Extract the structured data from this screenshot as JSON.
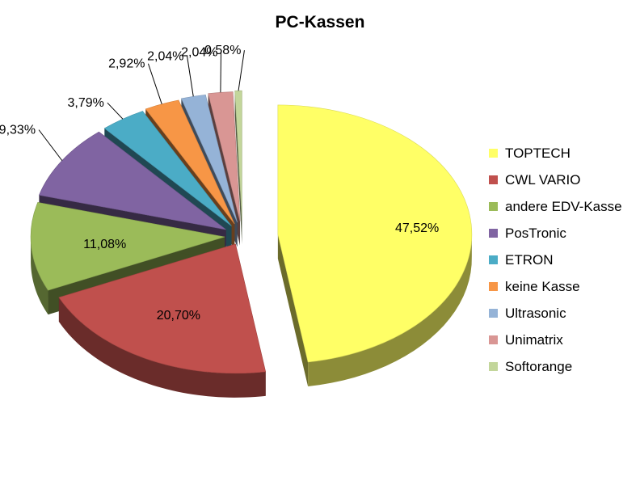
{
  "chart_data": {
    "type": "pie",
    "title": "PC-Kassen",
    "legend_position": "right",
    "label_suffix": "%",
    "slices": [
      {
        "label": "TOPTECH",
        "value": 47.52,
        "display": "47,52%",
        "color": "#ffff66"
      },
      {
        "label": "CWL VARIO",
        "value": 20.7,
        "display": "20,70%",
        "color": "#c0504d"
      },
      {
        "label": "andere EDV-Kasse",
        "value": 11.08,
        "display": "11,08%",
        "color": "#9bbb59"
      },
      {
        "label": "PosTronic",
        "value": 9.33,
        "display": "9,33%",
        "color": "#8064a2"
      },
      {
        "label": "ETRON",
        "value": 3.79,
        "display": "3,79%",
        "color": "#4bacc6"
      },
      {
        "label": "keine Kasse",
        "value": 2.92,
        "display": "2,92%",
        "color": "#f79646"
      },
      {
        "label": "Ultrasonic",
        "value": 2.04,
        "display": "2,04%",
        "color": "#95b3d7"
      },
      {
        "label": "Unimatrix",
        "value": 2.04,
        "display": "2,04%",
        "color": "#d99694"
      },
      {
        "label": "Softorange",
        "value": 0.58,
        "display": "0,58%",
        "color": "#c3d69b"
      }
    ]
  }
}
